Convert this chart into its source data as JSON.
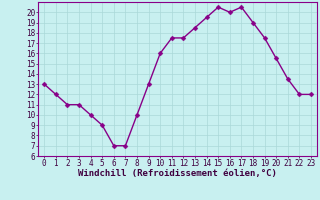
{
  "x": [
    0,
    1,
    2,
    3,
    4,
    5,
    6,
    7,
    8,
    9,
    10,
    11,
    12,
    13,
    14,
    15,
    16,
    17,
    18,
    19,
    20,
    21,
    22,
    23
  ],
  "y": [
    13,
    12,
    11,
    11,
    10,
    9,
    7,
    7,
    10,
    13,
    16,
    17.5,
    17.5,
    18.5,
    19.5,
    20.5,
    20,
    20.5,
    19,
    17.5,
    15.5,
    13.5,
    12,
    12
  ],
  "line_color": "#880088",
  "marker_color": "#880088",
  "bg_color": "#c8f0f0",
  "grid_color": "#aad8d8",
  "xlabel": "Windchill (Refroidissement éolien,°C)",
  "ylim": [
    6,
    21
  ],
  "xlim": [
    -0.5,
    23.5
  ],
  "yticks": [
    6,
    7,
    8,
    9,
    10,
    11,
    12,
    13,
    14,
    15,
    16,
    17,
    18,
    19,
    20
  ],
  "xticks": [
    0,
    1,
    2,
    3,
    4,
    5,
    6,
    7,
    8,
    9,
    10,
    11,
    12,
    13,
    14,
    15,
    16,
    17,
    18,
    19,
    20,
    21,
    22,
    23
  ],
  "tick_label_fontsize": 5.5,
  "xlabel_fontsize": 6.5,
  "line_width": 1.0,
  "marker_size": 2.5
}
